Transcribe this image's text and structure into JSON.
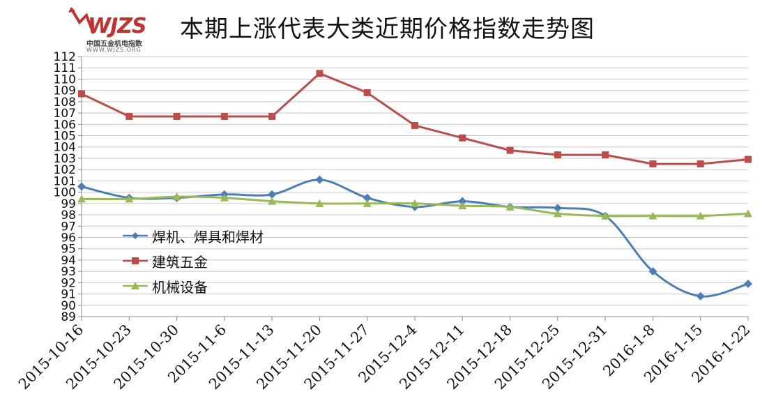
{
  "page": {
    "title": "本期上涨代表大类近期价格指数走势图"
  },
  "logo": {
    "brand": "WJZS",
    "subtitle": "中国五金机电指数",
    "url": "WWW.WJZS.ORG"
  },
  "chart_data": {
    "type": "line",
    "title": "本期上涨代表大类近期价格指数走势图",
    "categories": [
      "2015-10-16",
      "2015-10-23",
      "2015-10-30",
      "2015-11-6",
      "2015-11-13",
      "2015-11-20",
      "2015-11-27",
      "2015-12-4",
      "2015-12-11",
      "2015-12-18",
      "2015-12-25",
      "2015-12-31",
      "2016-1-8",
      "2016-1-15",
      "2016-1-22"
    ],
    "ylim": [
      89,
      112
    ],
    "yticks": [
      89,
      90,
      91,
      92,
      93,
      94,
      95,
      96,
      97,
      98,
      99,
      100,
      101,
      102,
      103,
      104,
      105,
      106,
      107,
      108,
      109,
      110,
      111,
      112
    ],
    "grid": true,
    "legend_position": "left",
    "series": [
      {
        "name": "焊机、焊具和焊材",
        "color": "#4a7ebb",
        "marker": "diamond",
        "values": [
          100.5,
          99.5,
          99.5,
          99.8,
          99.8,
          101.1,
          99.5,
          98.7,
          99.2,
          98.7,
          98.6,
          97.9,
          93.0,
          90.8,
          91.9
        ]
      },
      {
        "name": "建筑五金",
        "color": "#be4b48",
        "marker": "square",
        "values": [
          108.7,
          106.7,
          106.7,
          106.7,
          106.7,
          110.5,
          108.8,
          105.9,
          104.8,
          103.7,
          103.3,
          103.3,
          102.5,
          102.5,
          102.9
        ]
      },
      {
        "name": "机械设备",
        "color": "#98b954",
        "marker": "triangle",
        "values": [
          99.4,
          99.4,
          99.6,
          99.5,
          99.2,
          99.0,
          99.0,
          99.0,
          98.8,
          98.7,
          98.1,
          97.9,
          97.9,
          97.9,
          98.1
        ]
      }
    ]
  }
}
